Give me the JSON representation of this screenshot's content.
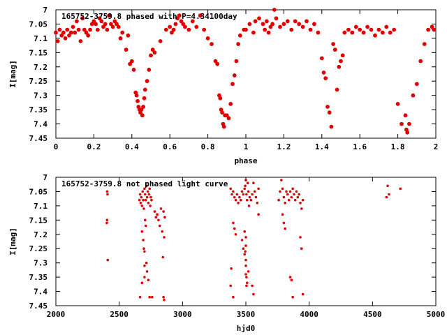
{
  "chart_data": [
    {
      "type": "scatter",
      "title": "165752-3759.8 phased with P=4.34100day",
      "xlabel": "phase",
      "ylabel": "I[mag]",
      "xlim": [
        0,
        2
      ],
      "ylim": [
        7.45,
        7.0
      ],
      "y_inverted": true,
      "xticks": [
        "0",
        "0.2",
        "0.4",
        "0.6",
        "0.8",
        "1",
        "1.2",
        "1.4",
        "1.6",
        "1.8",
        "2"
      ],
      "yticks": [
        "7",
        "7.05",
        "7.1",
        "7.15",
        "7.2",
        "7.25",
        "7.3",
        "7.35",
        "7.4",
        "7.45"
      ],
      "grid": false,
      "marker": "filled-circle",
      "color": "#e00000",
      "points": [
        [
          0.0,
          7.08
        ],
        [
          0.01,
          7.11
        ],
        [
          0.02,
          7.07
        ],
        [
          0.03,
          7.09
        ],
        [
          0.04,
          7.08
        ],
        [
          0.05,
          7.1
        ],
        [
          0.06,
          7.07
        ],
        [
          0.07,
          7.09
        ],
        [
          0.08,
          7.08
        ],
        [
          0.09,
          7.06
        ],
        [
          0.1,
          7.08
        ],
        [
          0.11,
          7.04
        ],
        [
          0.12,
          7.07
        ],
        [
          0.13,
          7.11
        ],
        [
          0.14,
          7.03
        ],
        [
          0.15,
          7.07
        ],
        [
          0.16,
          7.08
        ],
        [
          0.17,
          7.09
        ],
        [
          0.18,
          7.07
        ],
        [
          0.19,
          7.05
        ],
        [
          0.2,
          7.04
        ],
        [
          0.21,
          7.05
        ],
        [
          0.22,
          7.07
        ],
        [
          0.23,
          7.03
        ],
        [
          0.24,
          7.04
        ],
        [
          0.25,
          7.06
        ],
        [
          0.26,
          7.05
        ],
        [
          0.27,
          7.07
        ],
        [
          0.28,
          7.02
        ],
        [
          0.29,
          7.05
        ],
        [
          0.3,
          7.06
        ],
        [
          0.31,
          7.04
        ],
        [
          0.32,
          7.05
        ],
        [
          0.33,
          7.06
        ],
        [
          0.34,
          7.1
        ],
        [
          0.35,
          7.08
        ],
        [
          0.37,
          7.14
        ],
        [
          0.38,
          7.09
        ],
        [
          0.39,
          7.19
        ],
        [
          0.4,
          7.18
        ],
        [
          0.41,
          7.21
        ],
        [
          0.42,
          7.29
        ],
        [
          0.425,
          7.3
        ],
        [
          0.43,
          7.32
        ],
        [
          0.435,
          7.34
        ],
        [
          0.44,
          7.35
        ],
        [
          0.445,
          7.36
        ],
        [
          0.45,
          7.35
        ],
        [
          0.455,
          7.37
        ],
        [
          0.46,
          7.34
        ],
        [
          0.465,
          7.31
        ],
        [
          0.47,
          7.28
        ],
        [
          0.48,
          7.25
        ],
        [
          0.49,
          7.21
        ],
        [
          0.5,
          7.16
        ],
        [
          0.51,
          7.14
        ],
        [
          0.52,
          7.15
        ],
        [
          0.55,
          7.11
        ],
        [
          0.58,
          7.07
        ],
        [
          0.6,
          7.06
        ],
        [
          0.61,
          7.08
        ],
        [
          0.62,
          7.07
        ],
        [
          0.63,
          7.05
        ],
        [
          0.64,
          7.03
        ],
        [
          0.65,
          7.02
        ],
        [
          0.66,
          7.04
        ],
        [
          0.67,
          7.05
        ],
        [
          0.68,
          7.06
        ],
        [
          0.7,
          7.07
        ],
        [
          0.72,
          7.04
        ],
        [
          0.74,
          7.06
        ],
        [
          0.76,
          7.02
        ],
        [
          0.78,
          7.07
        ],
        [
          0.8,
          7.1
        ],
        [
          0.82,
          7.12
        ],
        [
          0.84,
          7.18
        ],
        [
          0.85,
          7.19
        ],
        [
          0.86,
          7.3
        ],
        [
          0.865,
          7.31
        ],
        [
          0.87,
          7.35
        ],
        [
          0.875,
          7.36
        ],
        [
          0.88,
          7.4
        ],
        [
          0.885,
          7.41
        ],
        [
          0.89,
          7.37
        ],
        [
          0.9,
          7.37
        ],
        [
          0.91,
          7.38
        ],
        [
          0.92,
          7.33
        ],
        [
          0.93,
          7.26
        ],
        [
          0.94,
          7.23
        ],
        [
          0.95,
          7.18
        ],
        [
          0.96,
          7.12
        ],
        [
          0.97,
          7.09
        ],
        [
          0.99,
          7.07
        ],
        [
          1.0,
          7.07
        ],
        [
          1.02,
          7.05
        ],
        [
          1.04,
          7.08
        ],
        [
          1.05,
          7.04
        ],
        [
          1.07,
          7.03
        ],
        [
          1.09,
          7.05
        ],
        [
          1.1,
          7.07
        ],
        [
          1.11,
          7.04
        ],
        [
          1.12,
          7.08
        ],
        [
          1.13,
          7.06
        ],
        [
          1.14,
          7.05
        ],
        [
          1.15,
          7.0
        ],
        [
          1.16,
          7.03
        ],
        [
          1.18,
          7.06
        ],
        [
          1.2,
          7.05
        ],
        [
          1.22,
          7.04
        ],
        [
          1.24,
          7.07
        ],
        [
          1.26,
          7.04
        ],
        [
          1.28,
          7.05
        ],
        [
          1.3,
          7.06
        ],
        [
          1.32,
          7.04
        ],
        [
          1.34,
          7.07
        ],
        [
          1.36,
          7.05
        ],
        [
          1.38,
          7.08
        ],
        [
          1.4,
          7.17
        ],
        [
          1.41,
          7.22
        ],
        [
          1.42,
          7.24
        ],
        [
          1.43,
          7.34
        ],
        [
          1.44,
          7.36
        ],
        [
          1.45,
          7.41
        ],
        [
          1.46,
          7.12
        ],
        [
          1.47,
          7.14
        ],
        [
          1.48,
          7.28
        ],
        [
          1.49,
          7.2
        ],
        [
          1.5,
          7.18
        ],
        [
          1.51,
          7.16
        ],
        [
          1.52,
          7.08
        ],
        [
          1.54,
          7.07
        ],
        [
          1.56,
          7.08
        ],
        [
          1.58,
          7.06
        ],
        [
          1.6,
          7.07
        ],
        [
          1.62,
          7.08
        ],
        [
          1.64,
          7.06
        ],
        [
          1.66,
          7.07
        ],
        [
          1.68,
          7.09
        ],
        [
          1.7,
          7.07
        ],
        [
          1.72,
          7.08
        ],
        [
          1.74,
          7.06
        ],
        [
          1.76,
          7.08
        ],
        [
          1.78,
          7.07
        ],
        [
          1.8,
          7.33
        ],
        [
          1.82,
          7.4
        ],
        [
          1.84,
          7.37
        ],
        [
          1.845,
          7.42
        ],
        [
          1.85,
          7.43
        ],
        [
          1.86,
          7.4
        ],
        [
          1.88,
          7.3
        ],
        [
          1.9,
          7.26
        ],
        [
          1.92,
          7.18
        ],
        [
          1.94,
          7.12
        ],
        [
          1.96,
          7.07
        ],
        [
          1.98,
          7.06
        ],
        [
          1.99,
          7.07
        ]
      ]
    },
    {
      "type": "scatter",
      "title": "165752-3759.8 not phased light curve",
      "xlabel": "hjd0",
      "ylabel": "I[mag]",
      "xlim": [
        2000,
        5000
      ],
      "ylim": [
        7.45,
        7.0
      ],
      "y_inverted": true,
      "xticks": [
        "2000",
        "2500",
        "3000",
        "3500",
        "4000",
        "4500",
        "5000"
      ],
      "yticks": [
        "7",
        "7.05",
        "7.1",
        "7.15",
        "7.2",
        "7.25",
        "7.3",
        "7.35",
        "7.4",
        "7.45"
      ],
      "grid": false,
      "marker": "small-circle",
      "color": "#e00000",
      "points": [
        [
          2405,
          7.05
        ],
        [
          2408,
          7.06
        ],
        [
          2402,
          7.16
        ],
        [
          2404,
          7.15
        ],
        [
          2410,
          7.29
        ],
        [
          2660,
          7.08
        ],
        [
          2665,
          7.06
        ],
        [
          2670,
          7.09
        ],
        [
          2675,
          7.07
        ],
        [
          2680,
          7.1
        ],
        [
          2685,
          7.05
        ],
        [
          2690,
          7.08
        ],
        [
          2695,
          7.11
        ],
        [
          2700,
          7.04
        ],
        [
          2705,
          7.06
        ],
        [
          2710,
          7.08
        ],
        [
          2715,
          7.03
        ],
        [
          2720,
          7.07
        ],
        [
          2725,
          7.05
        ],
        [
          2730,
          7.09
        ],
        [
          2735,
          7.06
        ],
        [
          2740,
          7.04
        ],
        [
          2745,
          7.1
        ],
        [
          2750,
          7.07
        ],
        [
          2755,
          7.08
        ],
        [
          2680,
          7.19
        ],
        [
          2690,
          7.22
        ],
        [
          2700,
          7.26
        ],
        [
          2710,
          7.17
        ],
        [
          2715,
          7.3
        ],
        [
          2720,
          7.33
        ],
        [
          2700,
          7.35
        ],
        [
          2705,
          7.15
        ],
        [
          2695,
          7.25
        ],
        [
          2730,
          7.36
        ],
        [
          2665,
          7.42
        ],
        [
          2680,
          7.37
        ],
        [
          2700,
          7.31
        ],
        [
          2740,
          7.42
        ],
        [
          2760,
          7.42
        ],
        [
          2780,
          7.12
        ],
        [
          2790,
          7.14
        ],
        [
          2800,
          7.13
        ],
        [
          2810,
          7.15
        ],
        [
          2820,
          7.17
        ],
        [
          2830,
          7.11
        ],
        [
          2840,
          7.19
        ],
        [
          2850,
          7.12
        ],
        [
          2855,
          7.21
        ],
        [
          2860,
          7.14
        ],
        [
          2845,
          7.28
        ],
        [
          2850,
          7.42
        ],
        [
          2855,
          7.43
        ],
        [
          3380,
          7.04
        ],
        [
          3390,
          7.06
        ],
        [
          3400,
          7.05
        ],
        [
          3410,
          7.07
        ],
        [
          3420,
          7.08
        ],
        [
          3430,
          7.06
        ],
        [
          3440,
          7.09
        ],
        [
          3450,
          7.07
        ],
        [
          3460,
          7.08
        ],
        [
          3470,
          7.05
        ],
        [
          3480,
          7.06
        ],
        [
          3490,
          7.04
        ],
        [
          3495,
          7.03
        ],
        [
          3500,
          7.01
        ],
        [
          3505,
          7.06
        ],
        [
          3510,
          7.08
        ],
        [
          3515,
          7.02
        ],
        [
          3520,
          7.05
        ],
        [
          3525,
          7.1
        ],
        [
          3530,
          7.07
        ],
        [
          3540,
          7.08
        ],
        [
          3550,
          7.06
        ],
        [
          3560,
          7.02
        ],
        [
          3570,
          7.05
        ],
        [
          3580,
          7.07
        ],
        [
          3590,
          7.09
        ],
        [
          3600,
          7.04
        ],
        [
          3400,
          7.16
        ],
        [
          3410,
          7.18
        ],
        [
          3420,
          7.2
        ],
        [
          3470,
          7.22
        ],
        [
          3480,
          7.25
        ],
        [
          3490,
          7.27
        ],
        [
          3500,
          7.29
        ],
        [
          3500,
          7.31
        ],
        [
          3500,
          7.34
        ],
        [
          3510,
          7.37
        ],
        [
          3505,
          7.38
        ],
        [
          3505,
          7.35
        ],
        [
          3500,
          7.24
        ],
        [
          3490,
          7.19
        ],
        [
          3385,
          7.32
        ],
        [
          3380,
          7.38
        ],
        [
          3400,
          7.42
        ],
        [
          3500,
          7.21
        ],
        [
          3495,
          7.26
        ],
        [
          3520,
          7.33
        ],
        [
          3550,
          7.38
        ],
        [
          3560,
          7.41
        ],
        [
          3600,
          7.13
        ],
        [
          3760,
          7.08
        ],
        [
          3770,
          7.05
        ],
        [
          3780,
          7.01
        ],
        [
          3790,
          7.04
        ],
        [
          3800,
          7.07
        ],
        [
          3810,
          7.09
        ],
        [
          3820,
          7.05
        ],
        [
          3830,
          7.06
        ],
        [
          3840,
          7.08
        ],
        [
          3850,
          7.05
        ],
        [
          3860,
          7.07
        ],
        [
          3870,
          7.04
        ],
        [
          3880,
          7.06
        ],
        [
          3890,
          7.08
        ],
        [
          3900,
          7.05
        ],
        [
          3910,
          7.07
        ],
        [
          3920,
          7.06
        ],
        [
          3930,
          7.09
        ],
        [
          3940,
          7.11
        ],
        [
          3950,
          7.08
        ],
        [
          3790,
          7.13
        ],
        [
          3800,
          7.16
        ],
        [
          3810,
          7.18
        ],
        [
          3850,
          7.35
        ],
        [
          3860,
          7.36
        ],
        [
          3870,
          7.42
        ],
        [
          3930,
          7.21
        ],
        [
          3940,
          7.25
        ],
        [
          3950,
          7.41
        ],
        [
          4620,
          7.03
        ],
        [
          4630,
          7.06
        ],
        [
          4610,
          7.07
        ],
        [
          4720,
          7.04
        ]
      ]
    }
  ]
}
